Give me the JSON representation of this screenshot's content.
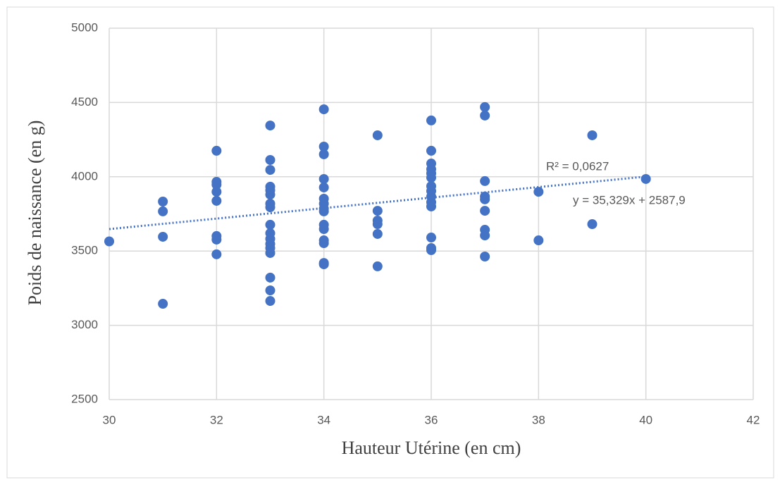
{
  "chart_data": {
    "type": "scatter",
    "x_label": "Hauteur Utérine (en cm)",
    "y_label": "Poids de naissance (en g)",
    "series": [
      {
        "name": "Poids de naissance (en g)",
        "color": "#4472c4",
        "x": [
          30,
          31,
          31,
          31,
          31,
          32,
          32,
          32,
          32,
          32,
          32,
          32,
          32,
          33,
          33,
          33,
          33,
          33,
          33,
          33,
          33,
          33,
          33,
          33,
          33,
          33,
          33,
          33,
          33,
          33,
          34,
          34,
          34,
          34,
          34,
          34,
          34,
          34,
          34,
          34,
          34,
          34,
          34,
          34,
          34,
          35,
          35,
          35,
          35,
          35,
          35,
          36,
          36,
          36,
          36,
          36,
          36,
          36,
          36,
          36,
          36,
          36,
          36,
          36,
          36,
          37,
          37,
          37,
          37,
          37,
          37,
          37,
          37,
          37,
          38,
          38,
          39,
          39,
          40
        ],
        "values": [
          3565,
          3833,
          3767,
          3596,
          3145,
          4175,
          3966,
          3947,
          3899,
          3838,
          3601,
          3577,
          3478,
          4345,
          4113,
          4046,
          3933,
          3909,
          3880,
          3819,
          3795,
          3677,
          3620,
          3582,
          3548,
          3520,
          3487,
          3321,
          3235,
          3164,
          4454,
          4203,
          4151,
          3985,
          3928,
          3852,
          3819,
          3786,
          3767,
          3677,
          3648,
          3572,
          3553,
          3420,
          3411,
          4279,
          3771,
          3705,
          3681,
          3615,
          3397,
          4379,
          4175,
          4089,
          4051,
          4023,
          3994,
          3937,
          3904,
          3867,
          3829,
          3800,
          3591,
          3520,
          3506,
          4469,
          4412,
          3971,
          3867,
          3848,
          3771,
          3643,
          3605,
          3463,
          3899,
          3572,
          4279,
          3681,
          3985
        ]
      }
    ],
    "trendline": {
      "slope": 35.329,
      "intercept": 2587.9,
      "color": "#4472c4",
      "equation_label": "y = 35,329x + 2587,9",
      "r2_label": "R² = 0,0627"
    },
    "xlim": [
      30,
      42
    ],
    "xticks": [
      30,
      32,
      34,
      36,
      38,
      40,
      42
    ],
    "ylim": [
      2500,
      5000
    ],
    "yticks": [
      2500,
      3000,
      3500,
      4000,
      4500,
      5000
    ],
    "grid": true
  }
}
